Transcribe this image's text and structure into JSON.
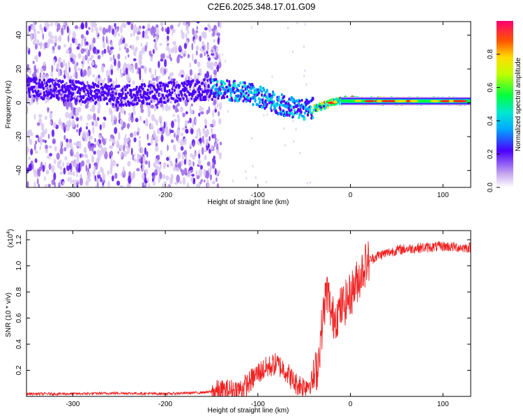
{
  "title": "C2E6.2025.348.17.01.G09",
  "chart_data": [
    {
      "type": "heatmap",
      "name": "spectrogram",
      "xlabel": "Height of straight line (km)",
      "ylabel": "Frequency (Hz)",
      "xlim": [
        -350,
        130
      ],
      "ylim": [
        -50,
        48
      ],
      "xticks": [
        -300,
        -200,
        -100,
        0,
        100
      ],
      "yticks": [
        -40,
        -20,
        0,
        20,
        40
      ],
      "ridge": {
        "x": [
          -350,
          -300,
          -250,
          -200,
          -150,
          -120,
          -100,
          -80,
          -70,
          -60,
          -50,
          -40,
          -30,
          -20,
          -10,
          0,
          10,
          30,
          60,
          100,
          130
        ],
        "y": [
          9,
          7,
          4,
          6,
          8,
          7,
          4,
          0,
          -2,
          -3,
          -4,
          -3,
          -2,
          0,
          1,
          2,
          1,
          1,
          1,
          1,
          1
        ]
      },
      "colorbar": {
        "label": "Normalized spectral amplitude",
        "range": [
          0.0,
          1.0
        ],
        "ticks": [
          0.0,
          0.2,
          0.4,
          0.6,
          0.8
        ],
        "tick_labels": [
          "0.0",
          "0.2",
          "0.4",
          "0.6",
          "0.8"
        ]
      }
    },
    {
      "type": "line",
      "name": "snr",
      "xlabel": "Height of straight line (km)",
      "ylabel": "SNR (10 * v/v)",
      "exponent_label": "(x10",
      "exponent_power": "4",
      "exponent_close": ")",
      "xlim": [
        -350,
        130
      ],
      "ylim": [
        0,
        1.27
      ],
      "xticks": [
        -300,
        -200,
        -100,
        0,
        100
      ],
      "yticks": [
        0.2,
        0.4,
        0.6,
        0.8,
        1.0,
        1.2
      ],
      "ytick_labels": [
        "0.2",
        "0.4",
        "0.6",
        "0.8",
        "1.0",
        "1.2"
      ],
      "color": "#ee2222",
      "series": [
        {
          "name": "SNR",
          "x": [
            -350,
            -300,
            -250,
            -200,
            -160,
            -140,
            -120,
            -110,
            -100,
            -90,
            -80,
            -70,
            -60,
            -50,
            -40,
            -35,
            -32,
            -28,
            -25,
            -20,
            -15,
            -10,
            -5,
            0,
            5,
            10,
            15,
            20,
            30,
            40,
            50,
            60,
            80,
            100,
            120,
            130
          ],
          "y": [
            0.02,
            0.02,
            0.025,
            0.02,
            0.03,
            0.04,
            0.05,
            0.1,
            0.18,
            0.22,
            0.25,
            0.2,
            0.1,
            0.08,
            0.12,
            0.25,
            0.45,
            0.7,
            0.82,
            0.6,
            0.62,
            0.68,
            0.72,
            0.78,
            0.85,
            0.92,
            1.0,
            1.04,
            1.08,
            1.1,
            1.12,
            1.13,
            1.14,
            1.15,
            1.14,
            1.14
          ]
        }
      ]
    }
  ]
}
